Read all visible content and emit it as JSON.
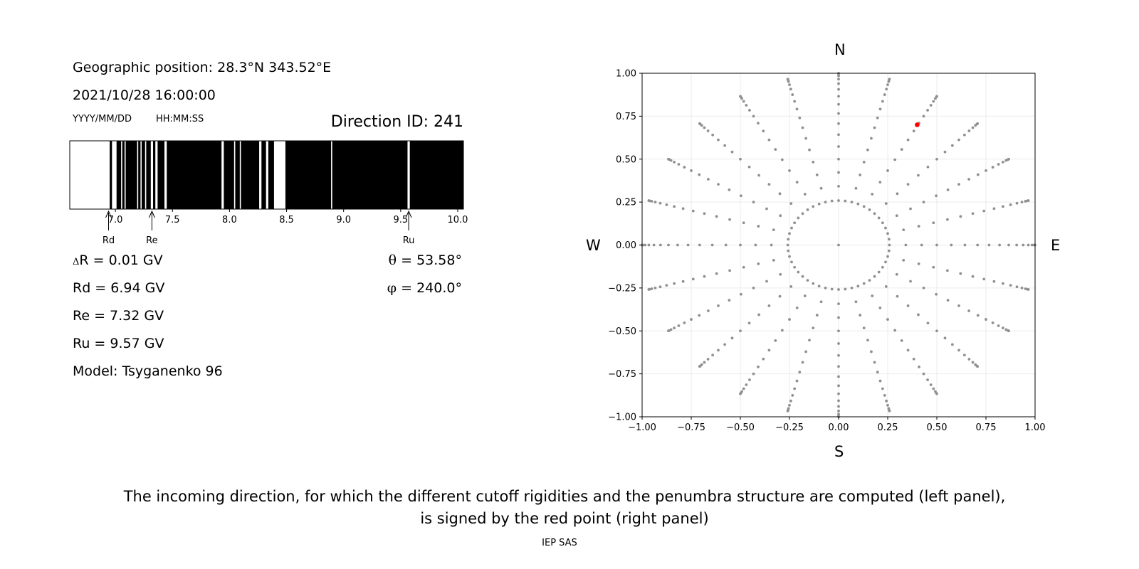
{
  "left": {
    "geo_position": "Geographic position: 28.3°N 343.52°E",
    "datetime": "2021/10/28 16:00:00",
    "date_format_label": "YYYY/MM/DD",
    "time_format_label": "HH:MM:SS",
    "direction_id": "Direction ID: 241",
    "markers": [
      {
        "label": "Rd",
        "value": 6.94
      },
      {
        "label": "Re",
        "value": 7.32
      },
      {
        "label": "Ru",
        "value": 9.57
      }
    ],
    "delta_r": {
      "symbol": "Δ",
      "text": "R = 0.01 GV"
    },
    "rd": "Rd = 6.94 GV",
    "re": "Re = 7.32 GV",
    "ru": "Ru = 9.57 GV",
    "model": "Model: Tsyganenko 96",
    "theta": {
      "symbol": "θ",
      "text": " = 53.58°"
    },
    "phi": {
      "symbol": "φ",
      "text": " = 240.0°"
    }
  },
  "compass": {
    "north": "N",
    "south": "S",
    "west": "W",
    "east": "E"
  },
  "caption": {
    "line1": "The incoming direction, for which the different cutoff rigidities and the penumbra structure are computed (left panel),",
    "line2": "is signed by the red point (right panel)"
  },
  "footer": "IEP SAS",
  "colors": {
    "forbidden": "#000000",
    "allowed": "#ffffff",
    "grid_points": "#909090",
    "selected_point": "#ff0000"
  },
  "chart_data": [
    {
      "type": "bar",
      "title": "",
      "xlabel": "",
      "ylabel": "",
      "xlim": [
        6.6,
        10.05
      ],
      "x_tick_labels": [
        "7.0",
        "7.5",
        "8.0",
        "8.5",
        "9.0",
        "9.5",
        "10.0"
      ],
      "x_ticks": [
        7.0,
        7.5,
        8.0,
        8.5,
        9.0,
        9.5,
        10.0
      ],
      "allowed_intervals": [
        [
          6.6,
          6.95
        ],
        [
          6.97,
          7.01
        ],
        [
          7.05,
          7.06
        ],
        [
          7.08,
          7.09
        ],
        [
          7.19,
          7.2
        ],
        [
          7.22,
          7.23
        ],
        [
          7.26,
          7.27
        ],
        [
          7.31,
          7.33
        ],
        [
          7.35,
          7.37
        ],
        [
          7.43,
          7.45
        ],
        [
          7.93,
          7.95
        ],
        [
          8.04,
          8.05
        ],
        [
          8.09,
          8.1
        ],
        [
          8.26,
          8.28
        ],
        [
          8.32,
          8.34
        ],
        [
          8.39,
          8.49
        ],
        [
          8.89,
          8.9
        ],
        [
          9.56,
          9.58
        ]
      ],
      "forbidden_color": "#000000",
      "allowed_color": "#ffffff"
    },
    {
      "type": "scatter",
      "title": "",
      "xlabel": "",
      "ylabel": "",
      "xlim": [
        -1.0,
        1.0
      ],
      "ylim": [
        -1.0,
        1.0
      ],
      "grid": true,
      "x_tick_labels": [
        "−1.00",
        "−0.75",
        "−0.50",
        "−0.25",
        "0.00",
        "0.25",
        "0.50",
        "0.75",
        "1.00"
      ],
      "y_tick_labels": [
        "1.00",
        "0.75",
        "0.50",
        "0.25",
        "0.00",
        "−0.25",
        "−0.50",
        "−0.75",
        "−1.00"
      ],
      "ticks": [
        -1.0,
        -0.75,
        -0.5,
        -0.25,
        0.0,
        0.25,
        0.5,
        0.75,
        1.0
      ],
      "grid_series": {
        "name": "",
        "color": "#909090",
        "description_of_structure": "directions at zenith angles 15..90 deg every 5 deg, azimuths every 15 deg; projected as r = sin(zenith)",
        "zenith_deg": [
          15,
          20,
          25,
          30,
          35,
          40,
          45,
          50,
          55,
          60,
          65,
          70,
          75,
          80,
          85,
          90
        ],
        "ring_counts": {
          "15": 24
        },
        "azimuth_step_deg": 15
      },
      "selected_point": {
        "x": 0.4,
        "y": 0.7,
        "color": "#ff0000"
      }
    }
  ]
}
